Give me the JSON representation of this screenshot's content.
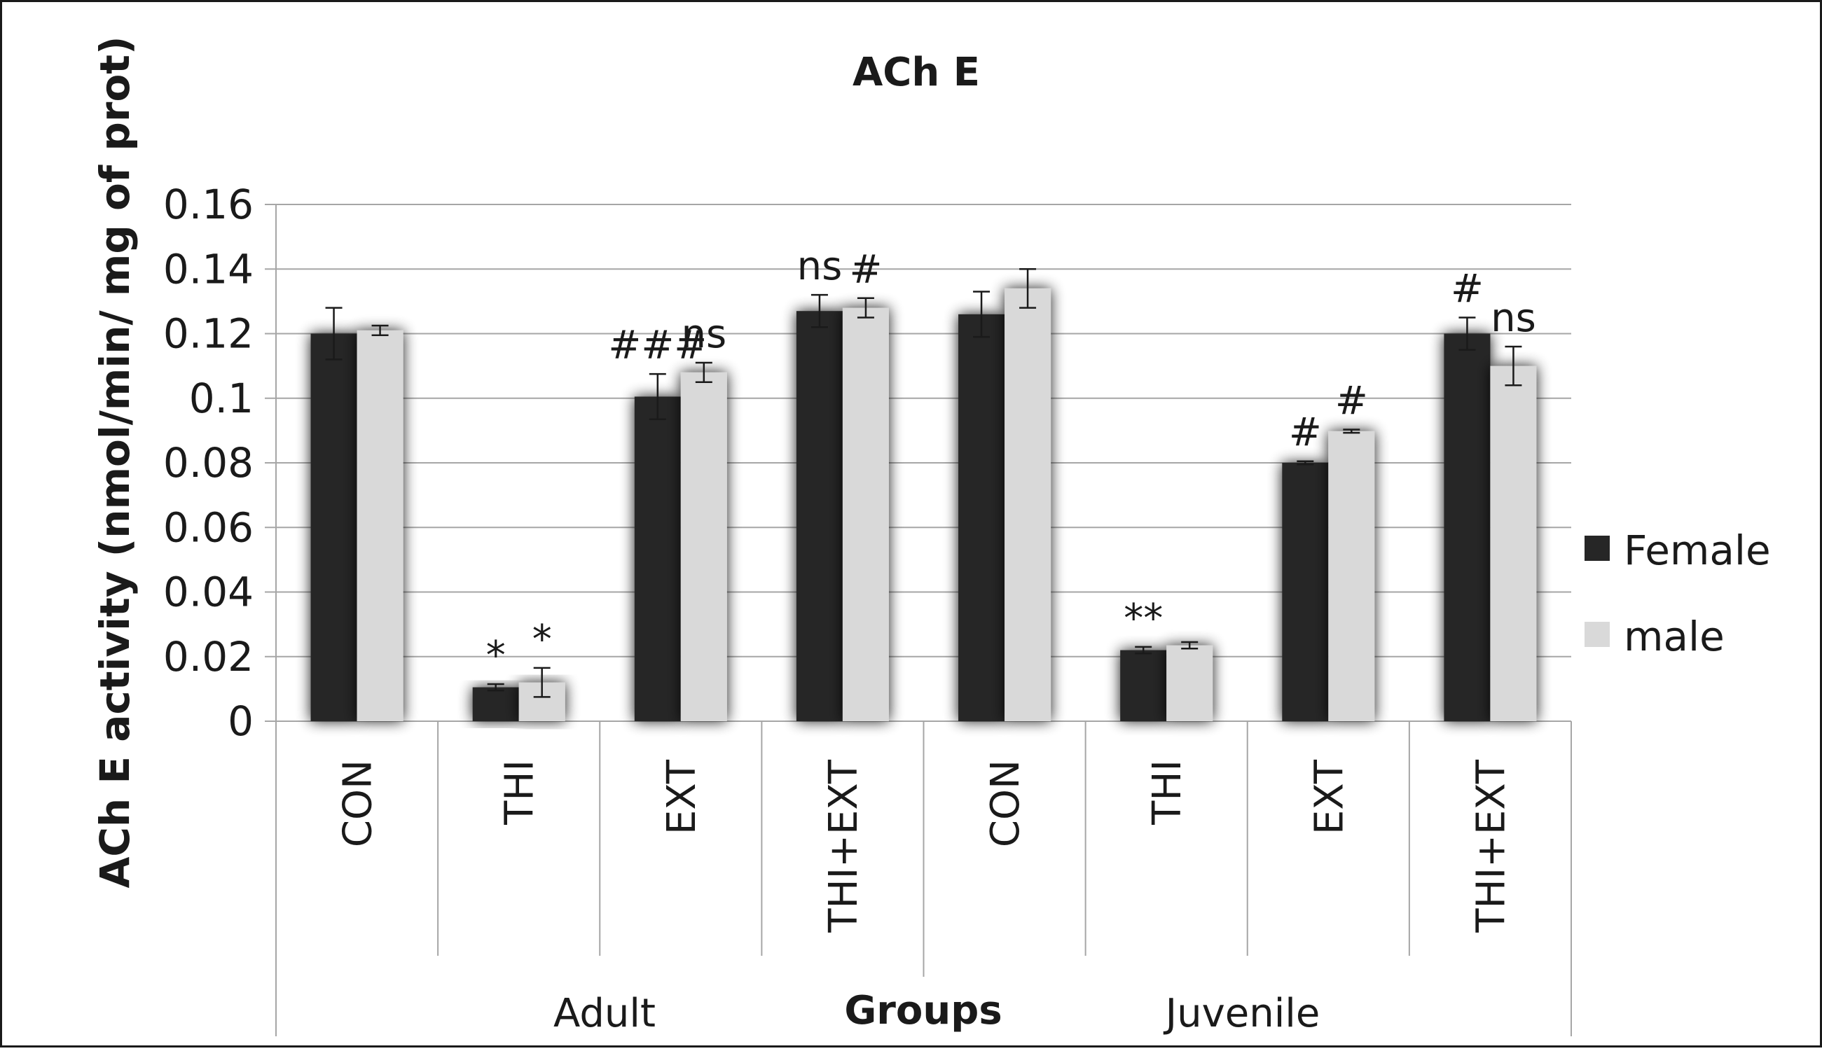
{
  "chart_data": {
    "type": "bar",
    "title": "ACh E",
    "ylabel": "ACh E activity (nmol/min/ mg of prot)",
    "xlabel": "Groups",
    "ylim": [
      0,
      0.16
    ],
    "yticks": [
      0,
      0.02,
      0.04,
      0.06,
      0.08,
      0.1,
      0.12,
      0.14,
      0.16
    ],
    "ytick_labels": [
      "0",
      "0.02",
      "0.04",
      "0.06",
      "0.08",
      "0.1",
      "0.12",
      "0.14",
      "0.16"
    ],
    "grid": true,
    "legend_position": "right",
    "categories": [
      "CON",
      "THI",
      "EXT",
      "THI+EXT",
      "CON",
      "THI",
      "EXT",
      "THI+EXT"
    ],
    "category_groups": [
      {
        "label": "Adult",
        "start": 0,
        "end": 3
      },
      {
        "label": "Juvenile",
        "start": 4,
        "end": 7
      }
    ],
    "series": [
      {
        "name": "Female",
        "color": "#262626",
        "values": [
          0.12,
          0.0105,
          0.1005,
          0.127,
          0.126,
          0.022,
          0.08,
          0.12
        ],
        "errors": [
          0.008,
          0.001,
          0.007,
          0.005,
          0.007,
          0.001,
          0.0005,
          0.005
        ],
        "annotations": [
          "",
          "*",
          "###",
          "ns",
          "",
          "**",
          "#",
          "#"
        ]
      },
      {
        "name": "male",
        "color": "#d9d9d9",
        "values": [
          0.121,
          0.012,
          0.108,
          0.128,
          0.134,
          0.0235,
          0.0898,
          0.11
        ],
        "errors": [
          0.0015,
          0.0045,
          0.003,
          0.003,
          0.006,
          0.001,
          0.0005,
          0.006
        ],
        "annotations": [
          "",
          "*",
          "ns",
          "#",
          "",
          "",
          "#",
          "ns"
        ]
      }
    ]
  }
}
